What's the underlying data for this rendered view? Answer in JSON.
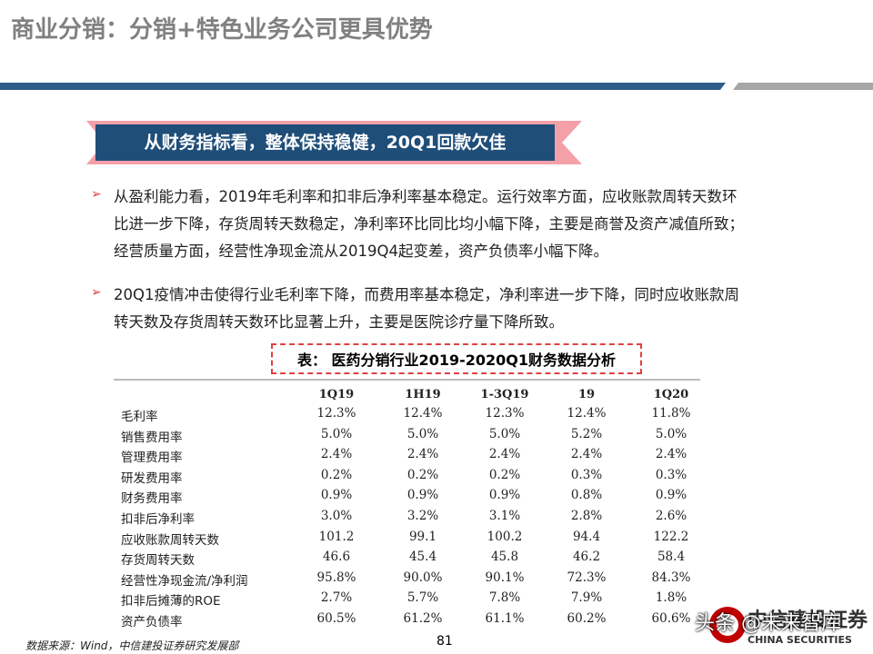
{
  "header": {
    "title": "商业分销：分销+特色业务公司更具优势"
  },
  "banner": "从财务指标看，整体保持稳健，20Q1回款欠佳",
  "bullets": [
    [
      "从盈利能力看，2019年毛利率和扣非后净利率基本稳定。运行效率方面，应收账款周转天数环",
      "比进一步下降，存货周转天数稳定，净利率环比同比均小幅下降，主要是商誉及资产减值所致；",
      "经营质量方面，经营性净现金流从2019Q4起变差，资产负债率小幅下降。"
    ],
    [
      "20Q1疫情冲击使得行业毛利率下降，而费用率基本稳定，净利率进一步下降，同时应收账款周",
      "转天数及存货周转天数环比显著上升，主要是医院诊疗量下降所致。"
    ]
  ],
  "table": {
    "title": "表： 医药分销行业2019-2020Q1财务数据分析",
    "columns": [
      "1Q19",
      "1H19",
      "1-3Q19",
      "19",
      "1Q20"
    ],
    "rows": [
      [
        "毛利率",
        "12.3%",
        "12.4%",
        "12.3%",
        "12.4%",
        "11.8%"
      ],
      [
        "销售费用率",
        "5.0%",
        "5.0%",
        "5.0%",
        "5.2%",
        "5.0%"
      ],
      [
        "管理费用率",
        "2.4%",
        "2.4%",
        "2.4%",
        "2.4%",
        "2.4%"
      ],
      [
        "研发费用率",
        "0.2%",
        "0.2%",
        "0.2%",
        "0.3%",
        "0.3%"
      ],
      [
        "财务费用率",
        "0.9%",
        "0.9%",
        "0.9%",
        "0.8%",
        "0.9%"
      ],
      [
        "扣非后净利率",
        "3.0%",
        "3.2%",
        "3.1%",
        "2.8%",
        "2.6%"
      ],
      [
        "应收账款周转天数",
        "101.2",
        "99.1",
        "100.2",
        "94.4",
        "122.2"
      ],
      [
        "存货周转天数",
        "46.6",
        "45.4",
        "45.8",
        "46.2",
        "58.4"
      ],
      [
        "经营性净现金流/净利润",
        "95.8%",
        "90.0%",
        "90.1%",
        "72.3%",
        "84.3%"
      ],
      [
        "扣非后摊薄的ROE",
        "2.7%",
        "5.7%",
        "7.8%",
        "7.9%",
        "1.8%"
      ],
      [
        "资产负债率",
        "60.5%",
        "61.2%",
        "61.1%",
        "60.2%",
        "60.6%"
      ]
    ]
  },
  "footer": {
    "source": "数据来源：Wind，中信建投证券研究发展部",
    "page": "81",
    "logo": "中信建投证券",
    "logo_en": "CHINA SECURITIES",
    "watermark": "头条 @未来智库"
  }
}
